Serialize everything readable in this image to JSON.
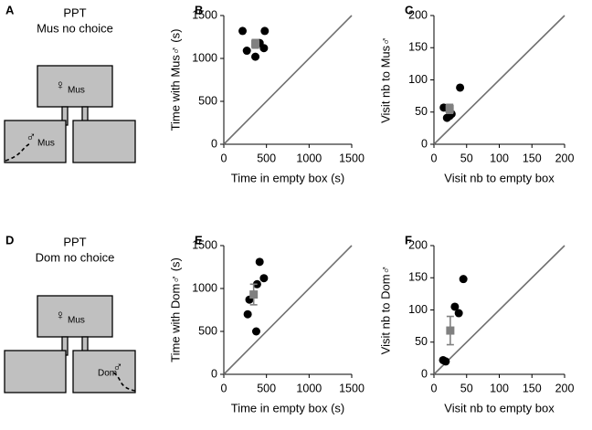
{
  "diagrams": [
    {
      "label": "A",
      "title": "PPT",
      "condition": "Mus no choice",
      "top_symbol": "♀",
      "top_name": "Mus",
      "side_symbol": "♂",
      "side_name": "Mus"
    },
    {
      "label": "D",
      "title": "PPT",
      "condition": "Dom no choice",
      "top_symbol": "♀",
      "top_name": "Mus",
      "side_symbol": "♂",
      "side_name": "Dom"
    }
  ],
  "chart_data": [
    {
      "type": "scatter",
      "label": "B",
      "xlabel": "Time in empty box (s)",
      "ylabel": "Time with Mus♂ (s)",
      "xlim": [
        0,
        1500
      ],
      "ylim": [
        0,
        1500
      ],
      "xticks": [
        0,
        500,
        1000,
        1500
      ],
      "yticks": [
        0,
        500,
        1000,
        1500
      ],
      "diagonal": true,
      "series": [
        {
          "color": "#000000",
          "marker": "circle",
          "x": [
            220,
            270,
            370,
            480,
            470,
            420
          ],
          "y": [
            1320,
            1090,
            1020,
            1320,
            1120,
            1180
          ]
        },
        {
          "color": "#808080",
          "marker": "square",
          "x": [
            370
          ],
          "y": [
            1170
          ],
          "yerr": [
            50
          ]
        }
      ]
    },
    {
      "type": "scatter",
      "label": "C",
      "xlabel": "Visit nb to empty box",
      "ylabel": "Visit nb to Mus♂",
      "xlim": [
        0,
        200
      ],
      "ylim": [
        0,
        200
      ],
      "xticks": [
        0,
        50,
        100,
        150,
        200
      ],
      "yticks": [
        0,
        50,
        100,
        150,
        200
      ],
      "diagonal": true,
      "series": [
        {
          "color": "#000000",
          "marker": "circle",
          "x": [
            15,
            20,
            24,
            27,
            40,
            22
          ],
          "y": [
            57,
            41,
            44,
            47,
            88,
            55
          ]
        },
        {
          "color": "#808080",
          "marker": "square",
          "x": [
            24
          ],
          "y": [
            55
          ],
          "yerr": [
            7
          ]
        }
      ]
    },
    {
      "type": "scatter",
      "label": "E",
      "xlabel": "Time in empty box (s)",
      "ylabel": "Time with Dom♂ (s)",
      "xlim": [
        0,
        1500
      ],
      "ylim": [
        0,
        1500
      ],
      "xticks": [
        0,
        500,
        1000,
        1500
      ],
      "yticks": [
        0,
        500,
        1000,
        1500
      ],
      "diagonal": true,
      "series": [
        {
          "color": "#000000",
          "marker": "circle",
          "x": [
            300,
            280,
            380,
            390,
            420,
            470
          ],
          "y": [
            870,
            700,
            500,
            1050,
            1310,
            1120
          ]
        },
        {
          "color": "#808080",
          "marker": "square",
          "x": [
            350
          ],
          "y": [
            930
          ],
          "yerr": [
            120
          ]
        }
      ]
    },
    {
      "type": "scatter",
      "label": "F",
      "xlabel": "Visit nb to empty box",
      "ylabel": "Visit nb to Dom♂",
      "xlim": [
        0,
        200
      ],
      "ylim": [
        0,
        200
      ],
      "xticks": [
        0,
        50,
        100,
        150,
        200
      ],
      "yticks": [
        0,
        50,
        100,
        150,
        200
      ],
      "diagonal": true,
      "series": [
        {
          "color": "#000000",
          "marker": "circle",
          "x": [
            14,
            18,
            32,
            38,
            45
          ],
          "y": [
            22,
            20,
            105,
            95,
            148
          ]
        },
        {
          "color": "#808080",
          "marker": "square",
          "x": [
            25
          ],
          "y": [
            68
          ],
          "yerr": [
            22
          ]
        }
      ]
    }
  ]
}
